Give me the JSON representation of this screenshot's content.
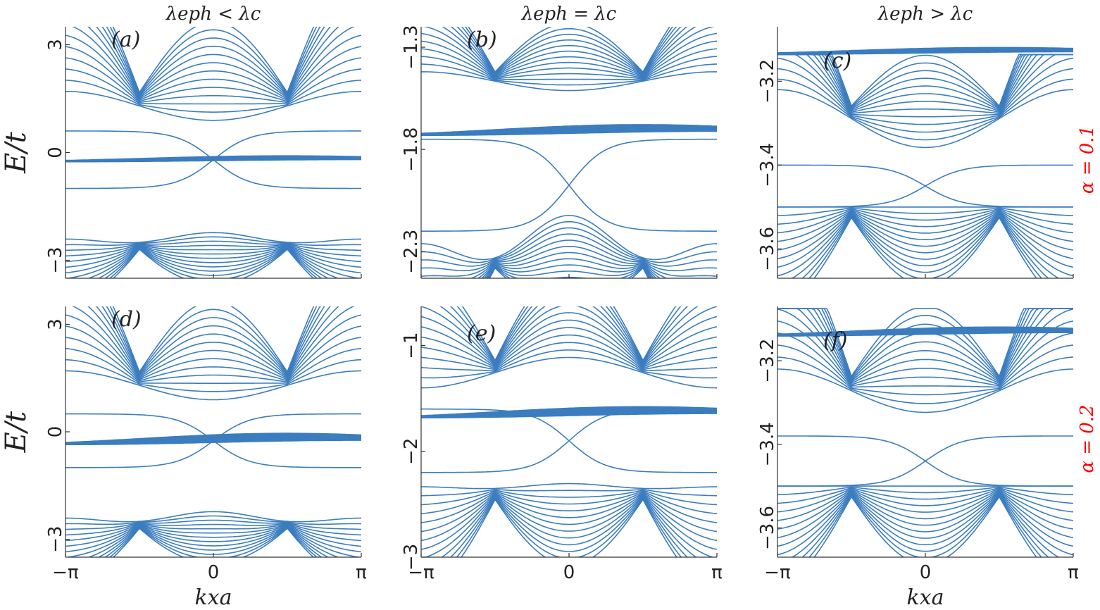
{
  "chart_data": [
    {
      "id": "a",
      "type": "line",
      "panel_label": "(a)",
      "title": "λeph < λc",
      "ylabel": "E/t",
      "xlabel": "",
      "x_ticks": [
        "−π",
        "0",
        "π"
      ],
      "xlim": [
        "-pi",
        "pi"
      ],
      "ylim": [
        -3.5,
        3.5
      ],
      "y_ticks": [
        3,
        0,
        -3
      ],
      "y_tick_labels": [
        "3",
        "0",
        "−3"
      ],
      "series": [
        {
          "type": "upper-bulk-bands",
          "count": 13,
          "top": 3.5,
          "bottom_at_center": 1.0,
          "dirac_points": [
            {
              "kx": "-pi/2",
              "E": 1.7
            },
            {
              "kx": "pi/2",
              "E": 1.7
            }
          ]
        },
        {
          "type": "flat-band",
          "E_range": [
            -0.25,
            -0.1
          ]
        },
        {
          "type": "edge-states",
          "E_range": [
            -1.0,
            0.6
          ]
        },
        {
          "type": "lower-bulk-bands",
          "count": 13,
          "bottom": -3.5,
          "top_at_center": -2.2,
          "dirac_points": [
            {
              "kx": "-pi/2",
              "E": -2.5
            },
            {
              "kx": "pi/2",
              "E": -2.5
            }
          ]
        }
      ]
    },
    {
      "id": "b",
      "type": "line",
      "panel_label": "(b)",
      "title": "λeph = λc",
      "ylabel": "",
      "xlabel": "",
      "x_ticks": [
        "−π",
        "0",
        "π"
      ],
      "xlim": [
        "-pi",
        "pi"
      ],
      "ylim": [
        -2.43,
        -1.2
      ],
      "y_ticks": [
        -1.3,
        -1.8,
        -2.3
      ],
      "y_tick_labels": [
        "−1.3",
        "−1.8",
        "−2.3"
      ],
      "series": [
        {
          "type": "upper-bulk-bands",
          "count": 13,
          "top": -1.2,
          "bottom_at_center": -1.5,
          "dirac_points": [
            {
              "kx": "-pi/2",
              "E": -1.42
            },
            {
              "kx": "pi/2",
              "E": -1.42
            }
          ]
        },
        {
          "type": "flat-band",
          "E_range": [
            -1.73,
            -1.68
          ]
        },
        {
          "type": "edge-states",
          "E_range": [
            -2.2,
            -1.75
          ]
        },
        {
          "type": "lower-bulk-bands",
          "count": 13,
          "bottom": -2.43,
          "top_at_center": -2.1,
          "dirac_points": [
            {
              "kx": "-pi/2",
              "E": -2.33
            },
            {
              "kx": "pi/2",
              "E": -2.33
            }
          ]
        }
      ]
    },
    {
      "id": "c",
      "type": "line",
      "panel_label": "(c)",
      "title": "λeph > λc",
      "ylabel": "",
      "xlabel": "",
      "side_label": "α = 0.1",
      "x_ticks": [
        "−π",
        "0",
        "π"
      ],
      "xlim": [
        "-pi",
        "pi"
      ],
      "ylim": [
        -3.67,
        -3.07
      ],
      "y_ticks": [
        -3.2,
        -3.4,
        -3.6
      ],
      "y_tick_labels": [
        "−3.2",
        "−3.4",
        "−3.6"
      ],
      "series": [
        {
          "type": "flat-band",
          "E_range": [
            -3.135,
            -3.12
          ]
        },
        {
          "type": "upper-bulk-bands",
          "count": 13,
          "top": -3.14,
          "bottom_at_center": -3.34,
          "dirac_points": [
            {
              "kx": "-pi/2",
              "E": -3.22
            },
            {
              "kx": "pi/2",
              "E": -3.22
            }
          ]
        },
        {
          "type": "edge-states",
          "E_range": [
            -3.5,
            -3.4
          ]
        },
        {
          "type": "lower-bulk-bands",
          "count": 13,
          "bottom": -3.67,
          "top_at_center": -3.5,
          "dirac_points": [
            {
              "kx": "-pi/2",
              "E": -3.5
            },
            {
              "kx": "pi/2",
              "E": -3.5
            }
          ]
        }
      ]
    },
    {
      "id": "d",
      "type": "line",
      "panel_label": "(d)",
      "title": "",
      "ylabel": "E/t",
      "xlabel": "kxa",
      "x_ticks": [
        "−π",
        "0",
        "π"
      ],
      "xlim": [
        "-pi",
        "pi"
      ],
      "ylim": [
        -3.5,
        3.5
      ],
      "y_ticks": [
        3,
        0,
        -3
      ],
      "y_tick_labels": [
        "3",
        "0",
        "−3"
      ],
      "series": [
        {
          "type": "upper-bulk-bands",
          "count": 13,
          "top": 3.5,
          "bottom_at_center": 1.0,
          "dirac_points": [
            {
              "kx": "-pi/2",
              "E": 1.7
            },
            {
              "kx": "pi/2",
              "E": 1.7
            }
          ]
        },
        {
          "type": "flat-band",
          "E_range": [
            -0.35,
            -0.05
          ]
        },
        {
          "type": "edge-states",
          "E_range": [
            -1.0,
            0.5
          ]
        },
        {
          "type": "lower-bulk-bands",
          "count": 13,
          "bottom": -3.5,
          "top_at_center": -2.2,
          "dirac_points": [
            {
              "kx": "-pi/2",
              "E": -2.5
            },
            {
              "kx": "pi/2",
              "E": -2.5
            }
          ]
        }
      ]
    },
    {
      "id": "e",
      "type": "line",
      "panel_label": "(e)",
      "title": "",
      "ylabel": "",
      "xlabel": "",
      "x_ticks": [
        "−π",
        "0",
        "π"
      ],
      "xlim": [
        "-pi",
        "pi"
      ],
      "ylim": [
        -3.0,
        -0.63
      ],
      "y_ticks": [
        -1,
        -2,
        -3
      ],
      "y_tick_labels": [
        "−1",
        "−2",
        "−3"
      ],
      "series": [
        {
          "type": "upper-bulk-bands",
          "count": 13,
          "top": -0.63,
          "bottom_at_center": -1.15,
          "dirac_points": [
            {
              "kx": "-pi/2",
              "E": -1.4
            },
            {
              "kx": "pi/2",
              "E": -1.4
            }
          ]
        },
        {
          "type": "flat-band",
          "E_range": [
            -1.68,
            -1.58
          ]
        },
        {
          "type": "edge-states",
          "E_range": [
            -2.2,
            -1.6
          ]
        },
        {
          "type": "lower-bulk-bands",
          "count": 13,
          "bottom": -3.0,
          "top_at_center": -2.3,
          "dirac_points": [
            {
              "kx": "-pi/2",
              "E": -2.35
            },
            {
              "kx": "pi/2",
              "E": -2.35
            }
          ]
        }
      ]
    },
    {
      "id": "f",
      "type": "line",
      "panel_label": "(f)",
      "title": "",
      "ylabel": "",
      "xlabel": "kxa",
      "side_label": "α = 0.2",
      "x_ticks": [
        "−π",
        "0",
        "π"
      ],
      "xlim": [
        "-pi",
        "pi"
      ],
      "ylim": [
        -3.67,
        -3.07
      ],
      "y_ticks": [
        -3.2,
        -3.4,
        -3.6
      ],
      "y_tick_labels": [
        "−3.2",
        "−3.4",
        "−3.6"
      ],
      "series": [
        {
          "type": "flat-band",
          "E_range": [
            -3.14,
            -3.12
          ]
        },
        {
          "type": "upper-bulk-bands",
          "count": 13,
          "top": -3.08,
          "bottom_at_center": -3.31,
          "dirac_points": [
            {
              "kx": "-pi/2",
              "E": -3.22
            },
            {
              "kx": "pi/2",
              "E": -3.22
            }
          ]
        },
        {
          "type": "edge-states",
          "E_range": [
            -3.5,
            -3.38
          ]
        },
        {
          "type": "lower-bulk-bands",
          "count": 13,
          "bottom": -3.67,
          "top_at_center": -3.5,
          "dirac_points": [
            {
              "kx": "-pi/2",
              "E": -3.5
            },
            {
              "kx": "pi/2",
              "E": -3.5
            }
          ]
        }
      ]
    }
  ],
  "colors": {
    "bands": "#3b7dbf",
    "side_label": "#ff0000",
    "axes": "#333333"
  }
}
